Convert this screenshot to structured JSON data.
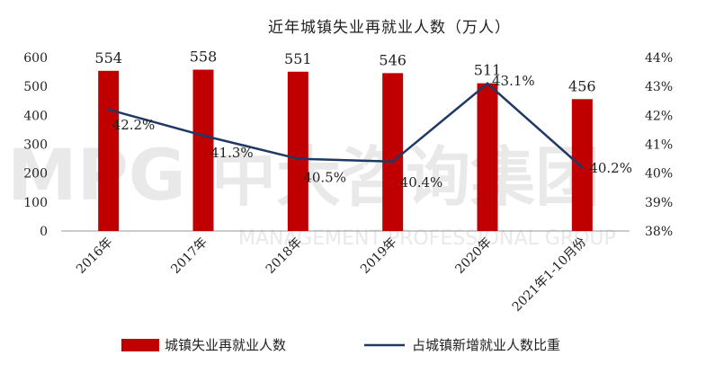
{
  "chart_data": {
    "type": "bar+line",
    "title": "近年城镇失业再就业人数（万人）",
    "categories": [
      "2016年",
      "2017年",
      "2018年",
      "2019年",
      "2020年",
      "2021年1-10月份"
    ],
    "series": [
      {
        "name": "城镇失业再就业人数",
        "type": "bar",
        "axis": "left",
        "color": "#c00000",
        "values": [
          554,
          558,
          551,
          546,
          511,
          456
        ],
        "labels": [
          "554",
          "558",
          "551",
          "546",
          "511",
          "456"
        ]
      },
      {
        "name": "占城镇新增就业人数比重",
        "type": "line",
        "axis": "right",
        "color": "#1f3864",
        "values": [
          42.2,
          41.3,
          40.5,
          40.4,
          43.1,
          40.2
        ],
        "labels": [
          "42.2%",
          "41.3%",
          "40.5%",
          "40.4%",
          "43.1%",
          "40.2%"
        ]
      }
    ],
    "yleft": {
      "min": 0,
      "max": 600,
      "ticks": [
        "0",
        "100",
        "200",
        "300",
        "400",
        "500",
        "600"
      ]
    },
    "yright": {
      "min": 38,
      "max": 44,
      "ticks": [
        "38%",
        "39%",
        "40%",
        "41%",
        "42%",
        "43%",
        "44%"
      ]
    },
    "legend_position": "bottom",
    "watermark": "MPG 中大咨询集团 MANAGEMENT PROFESSIONAL GROUP"
  }
}
